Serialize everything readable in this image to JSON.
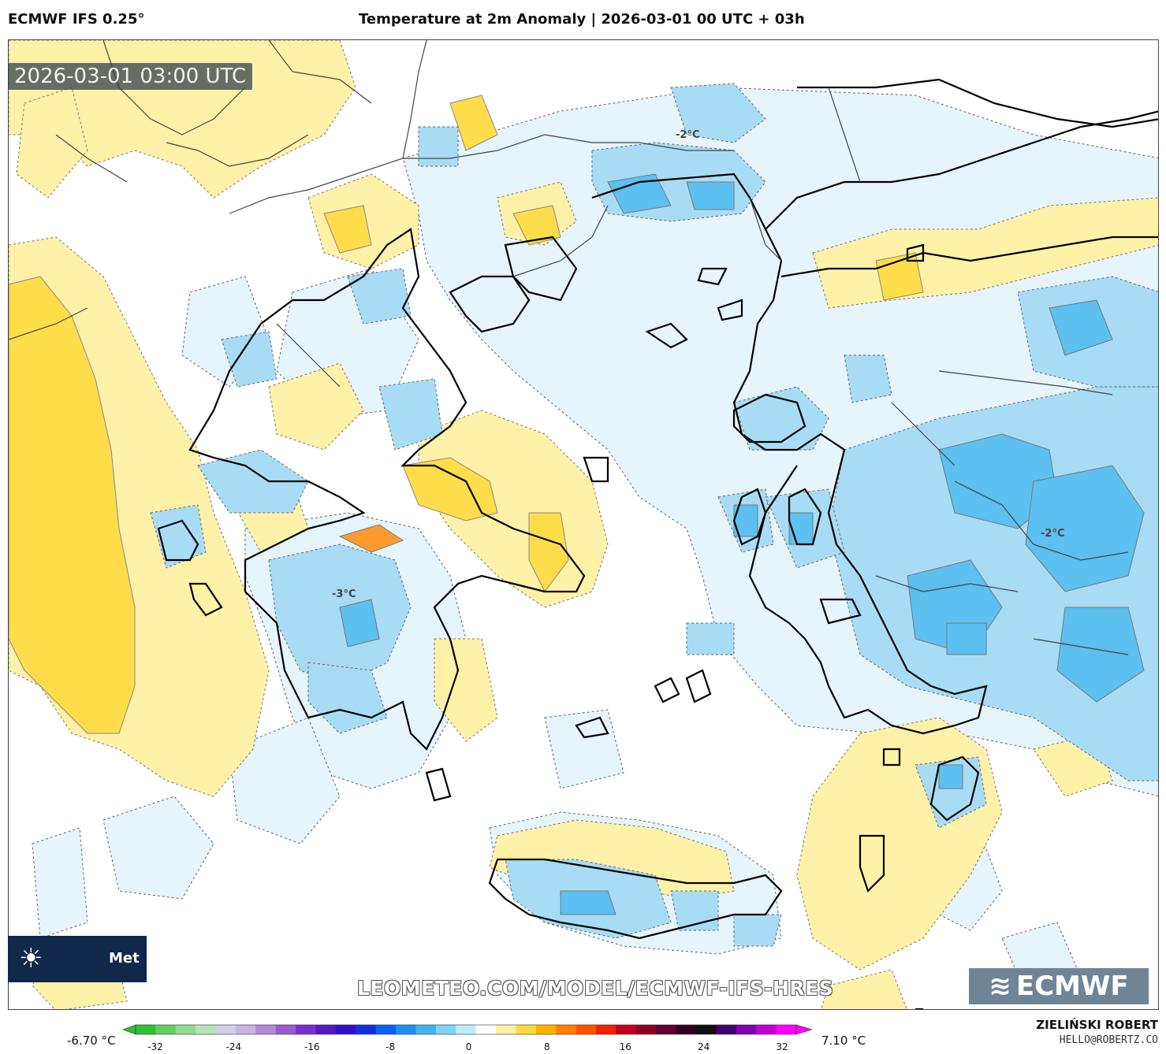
{
  "header": {
    "model": "ECMWF IFS 0.25°",
    "title": "Temperature at 2m Anomaly | 2026-03-01 00 UTC + 03h"
  },
  "map": {
    "valid_time": "2026-03-01 03:00 UTC",
    "contour_labels": [
      "-2°C",
      "-2°C",
      "-3°C"
    ],
    "watermark_url": "LEOMETEO.COM/MODEL/ECMWF-IFS-HRES",
    "logo_text": "Met",
    "ecmwf_logo": "ECMWF"
  },
  "colorbar": {
    "min_label": "-6.70 °C",
    "max_label": "7.10 °C",
    "ticks": [
      "-32",
      "-24",
      "-16",
      "-8",
      "0",
      "8",
      "16",
      "24",
      "32"
    ],
    "colors": [
      "#30c030",
      "#5fd060",
      "#90dd90",
      "#b8e4b8",
      "#cfcfe6",
      "#c7b4e4",
      "#b08ad8",
      "#9a5ad0",
      "#7a30c8",
      "#5a18c0",
      "#3010c8",
      "#1030e0",
      "#1060f0",
      "#1a90f0",
      "#40b4f0",
      "#80d4f4",
      "#c0ecfa",
      "#ffffff",
      "#fff0a0",
      "#ffd840",
      "#ffb000",
      "#ff8000",
      "#ff5000",
      "#f02000",
      "#c00020",
      "#900020",
      "#600030",
      "#300020",
      "#101010",
      "#400070",
      "#8000b0",
      "#c000d0",
      "#ff00ff"
    ]
  },
  "footer": {
    "author": "ZIELIŃSKI ROBERT",
    "email": "HELLO@ROBERTZ.CO"
  }
}
